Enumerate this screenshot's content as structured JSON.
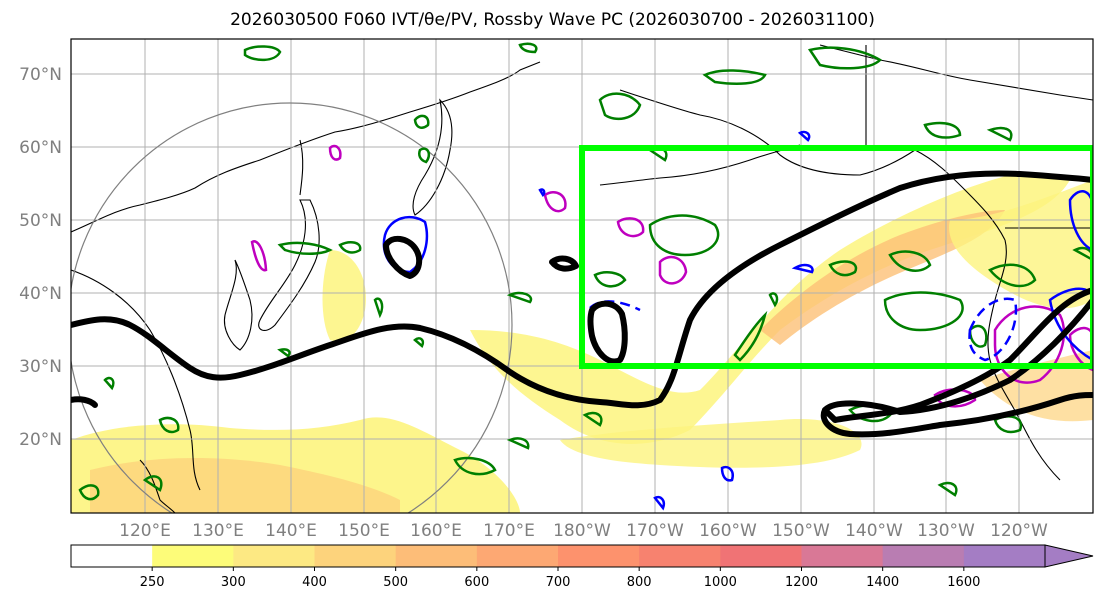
{
  "title": "2026030500 F060 IVT/θe/PV, Rossby Wave PC (2026030700 - 2026031100)",
  "lat_labels": [
    "70°N",
    "60°N",
    "50°N",
    "40°N",
    "30°N",
    "20°N"
  ],
  "lon_labels": [
    "120°E",
    "130°E",
    "140°E",
    "150°E",
    "160°E",
    "170°E",
    "180°W",
    "170°W",
    "160°W",
    "150°W",
    "140°W",
    "130°W",
    "120°W"
  ],
  "colorbar": {
    "levels": [
      "250",
      "300",
      "400",
      "500",
      "600",
      "700",
      "800",
      "1000",
      "1200",
      "1400",
      "1600"
    ],
    "colors": [
      "#ffffff",
      "#fdfc79",
      "#fde983",
      "#fdd37c",
      "#fdbd78",
      "#fda873",
      "#fd926d",
      "#f7826f",
      "#f07375",
      "#d97896",
      "#b97db2",
      "#a47dc4"
    ]
  },
  "colors": {
    "box": "#00ff00",
    "pv": "#007f00",
    "positive_pc": "#0000ff",
    "negative_pc": "#bf00bf",
    "theta_e": "#000000",
    "coast": "#000000",
    "grid": "#b0b0b0",
    "circle": "#808080"
  }
}
